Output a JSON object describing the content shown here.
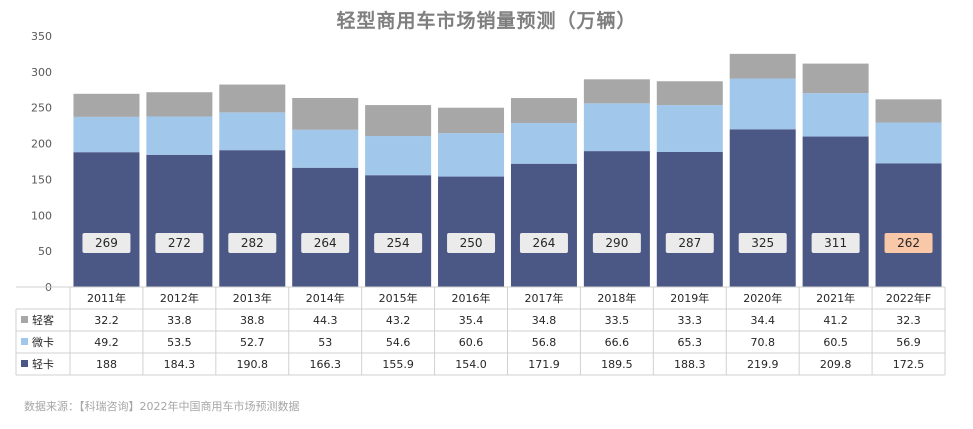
{
  "chart_data": {
    "type": "bar",
    "stacked": true,
    "title": "轻型商用车市场销量预测（万辆）",
    "categories": [
      "2011年",
      "2012年",
      "2013年",
      "2014年",
      "2015年",
      "2016年",
      "2017年",
      "2018年",
      "2019年",
      "2020年",
      "2021年",
      "2022年F"
    ],
    "series": [
      {
        "name": "轻卡",
        "color": "#4b5785",
        "values": [
          188,
          184.3,
          190.8,
          166.3,
          155.9,
          154.0,
          171.9,
          189.5,
          188.3,
          219.9,
          209.8,
          172.5
        ]
      },
      {
        "name": "微卡",
        "color": "#a1c7ea",
        "values": [
          49.2,
          53.5,
          52.7,
          53,
          54.6,
          60.6,
          56.8,
          66.6,
          65.3,
          70.8,
          60.5,
          56.9
        ]
      },
      {
        "name": "轻客",
        "color": "#a7a7a7",
        "values": [
          32.2,
          33.8,
          38.8,
          44.3,
          43.2,
          35.4,
          34.8,
          33.5,
          33.3,
          34.4,
          41.2,
          32.3
        ]
      }
    ],
    "table_rows": [
      {
        "label": "轻客",
        "color": "#a7a7a7",
        "cells": [
          "32.2",
          "33.8",
          "38.8",
          "44.3",
          "43.2",
          "35.4",
          "34.8",
          "33.5",
          "33.3",
          "34.4",
          "41.2",
          "32.3"
        ]
      },
      {
        "label": "微卡",
        "color": "#a1c7ea",
        "cells": [
          "49.2",
          "53.5",
          "52.7",
          "53",
          "54.6",
          "60.6",
          "56.8",
          "66.6",
          "65.3",
          "70.8",
          "60.5",
          "56.9"
        ]
      },
      {
        "label": "轻卡",
        "color": "#4b5785",
        "cells": [
          "188",
          "184.3",
          "190.8",
          "166.3",
          "155.9",
          "154.0",
          "171.9",
          "189.5",
          "188.3",
          "219.9",
          "209.8",
          "172.5"
        ]
      }
    ],
    "totals": [
      "269",
      "272",
      "282",
      "264",
      "254",
      "250",
      "264",
      "290",
      "287",
      "325",
      "311",
      "262"
    ],
    "total_label_colors": {
      "default": "#ebebeb",
      "highlight": "#f8c8a8",
      "highlight_index": 11
    },
    "yticks": [
      "0",
      "50",
      "100",
      "150",
      "200",
      "250",
      "300",
      "350"
    ],
    "ylim": [
      0,
      350
    ],
    "grid": false,
    "legend": "data-table"
  },
  "source_text": "数据来源：【科瑞咨询】2022年中国商用车市场预测数据"
}
